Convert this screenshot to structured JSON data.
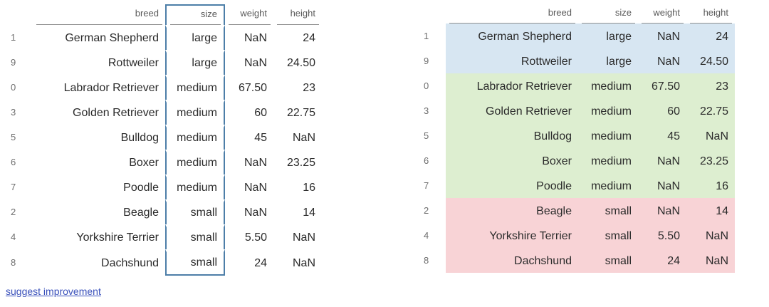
{
  "colors": {
    "row_large": "#d7e6f2",
    "row_medium": "#ddeed0",
    "row_small": "#f8d3d6",
    "header_underline": "#8f8f8f",
    "highlight_box_border": "#4d7ea8",
    "link": "#3a51bb",
    "header_text": "#5a5a5a",
    "index_text": "#6e6e6e",
    "cell_text": "#2b2b2b"
  },
  "table": {
    "columns": [
      "breed",
      "size",
      "weight",
      "height"
    ],
    "highlighted_column": "size",
    "row_color_groups": {
      "large": "row_large",
      "medium": "row_medium",
      "small": "row_small"
    },
    "rows": [
      {
        "index": "1",
        "breed": "German Shepherd",
        "size": "large",
        "weight": "NaN",
        "height": "24"
      },
      {
        "index": "9",
        "breed": "Rottweiler",
        "size": "large",
        "weight": "NaN",
        "height": "24.50"
      },
      {
        "index": "0",
        "breed": "Labrador Retriever",
        "size": "medium",
        "weight": "67.50",
        "height": "23"
      },
      {
        "index": "3",
        "breed": "Golden Retriever",
        "size": "medium",
        "weight": "60",
        "height": "22.75"
      },
      {
        "index": "5",
        "breed": "Bulldog",
        "size": "medium",
        "weight": "45",
        "height": "NaN"
      },
      {
        "index": "6",
        "breed": "Boxer",
        "size": "medium",
        "weight": "NaN",
        "height": "23.25"
      },
      {
        "index": "7",
        "breed": "Poodle",
        "size": "medium",
        "weight": "NaN",
        "height": "16"
      },
      {
        "index": "2",
        "breed": "Beagle",
        "size": "small",
        "weight": "NaN",
        "height": "14"
      },
      {
        "index": "4",
        "breed": "Yorkshire Terrier",
        "size": "small",
        "weight": "5.50",
        "height": "NaN"
      },
      {
        "index": "8",
        "breed": "Dachshund",
        "size": "small",
        "weight": "24",
        "height": "NaN"
      }
    ]
  },
  "footer": {
    "link_label": "suggest improvement"
  }
}
